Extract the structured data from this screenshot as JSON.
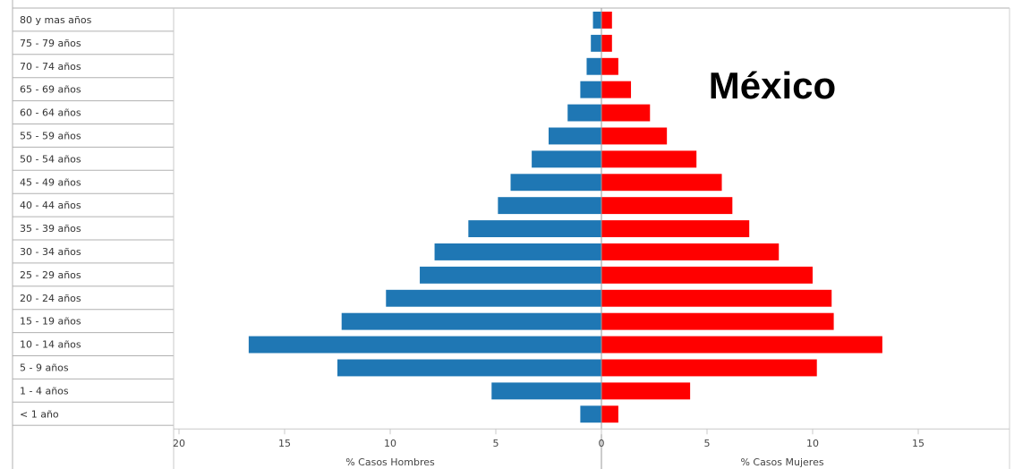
{
  "chart_data": {
    "type": "bar",
    "orientation": "horizontal-diverging",
    "title": "México",
    "categories": [
      "80 y mas años",
      "75 - 79 años",
      "70 - 74 años",
      "65 - 69 años",
      "60 - 64 años",
      "55 - 59 años",
      "50 - 54 años",
      "45 - 49 años",
      "40 - 44 años",
      "35 - 39 años",
      "30 - 34 años",
      "25 - 29 años",
      "20 - 24 años",
      "15 - 19 años",
      "10 - 14 años",
      "5 - 9 años",
      "1 - 4 años",
      "< 1 año"
    ],
    "series": [
      {
        "name": "% Casos Hombres",
        "color": "#1f77b4",
        "values": [
          0.4,
          0.5,
          0.7,
          1.0,
          1.6,
          2.5,
          3.3,
          4.3,
          4.9,
          6.3,
          7.9,
          8.6,
          10.2,
          12.3,
          16.7,
          12.5,
          5.2,
          1.0
        ]
      },
      {
        "name": "% Casos Mujeres",
        "color": "#ff0000",
        "values": [
          0.5,
          0.5,
          0.8,
          1.4,
          2.3,
          3.1,
          4.5,
          5.7,
          6.2,
          7.0,
          8.4,
          10.0,
          10.9,
          11.0,
          13.3,
          10.2,
          4.2,
          0.8
        ]
      }
    ],
    "x_axis_left": {
      "label": "% Casos Hombres",
      "ticks": [
        "20",
        "15",
        "10",
        "5",
        "0"
      ]
    },
    "x_axis_right": {
      "label": "% Casos Mujeres",
      "ticks": [
        "0",
        "5",
        "10",
        "15"
      ]
    },
    "xlim": [
      -20,
      19
    ],
    "grid": false,
    "legend": "none"
  }
}
